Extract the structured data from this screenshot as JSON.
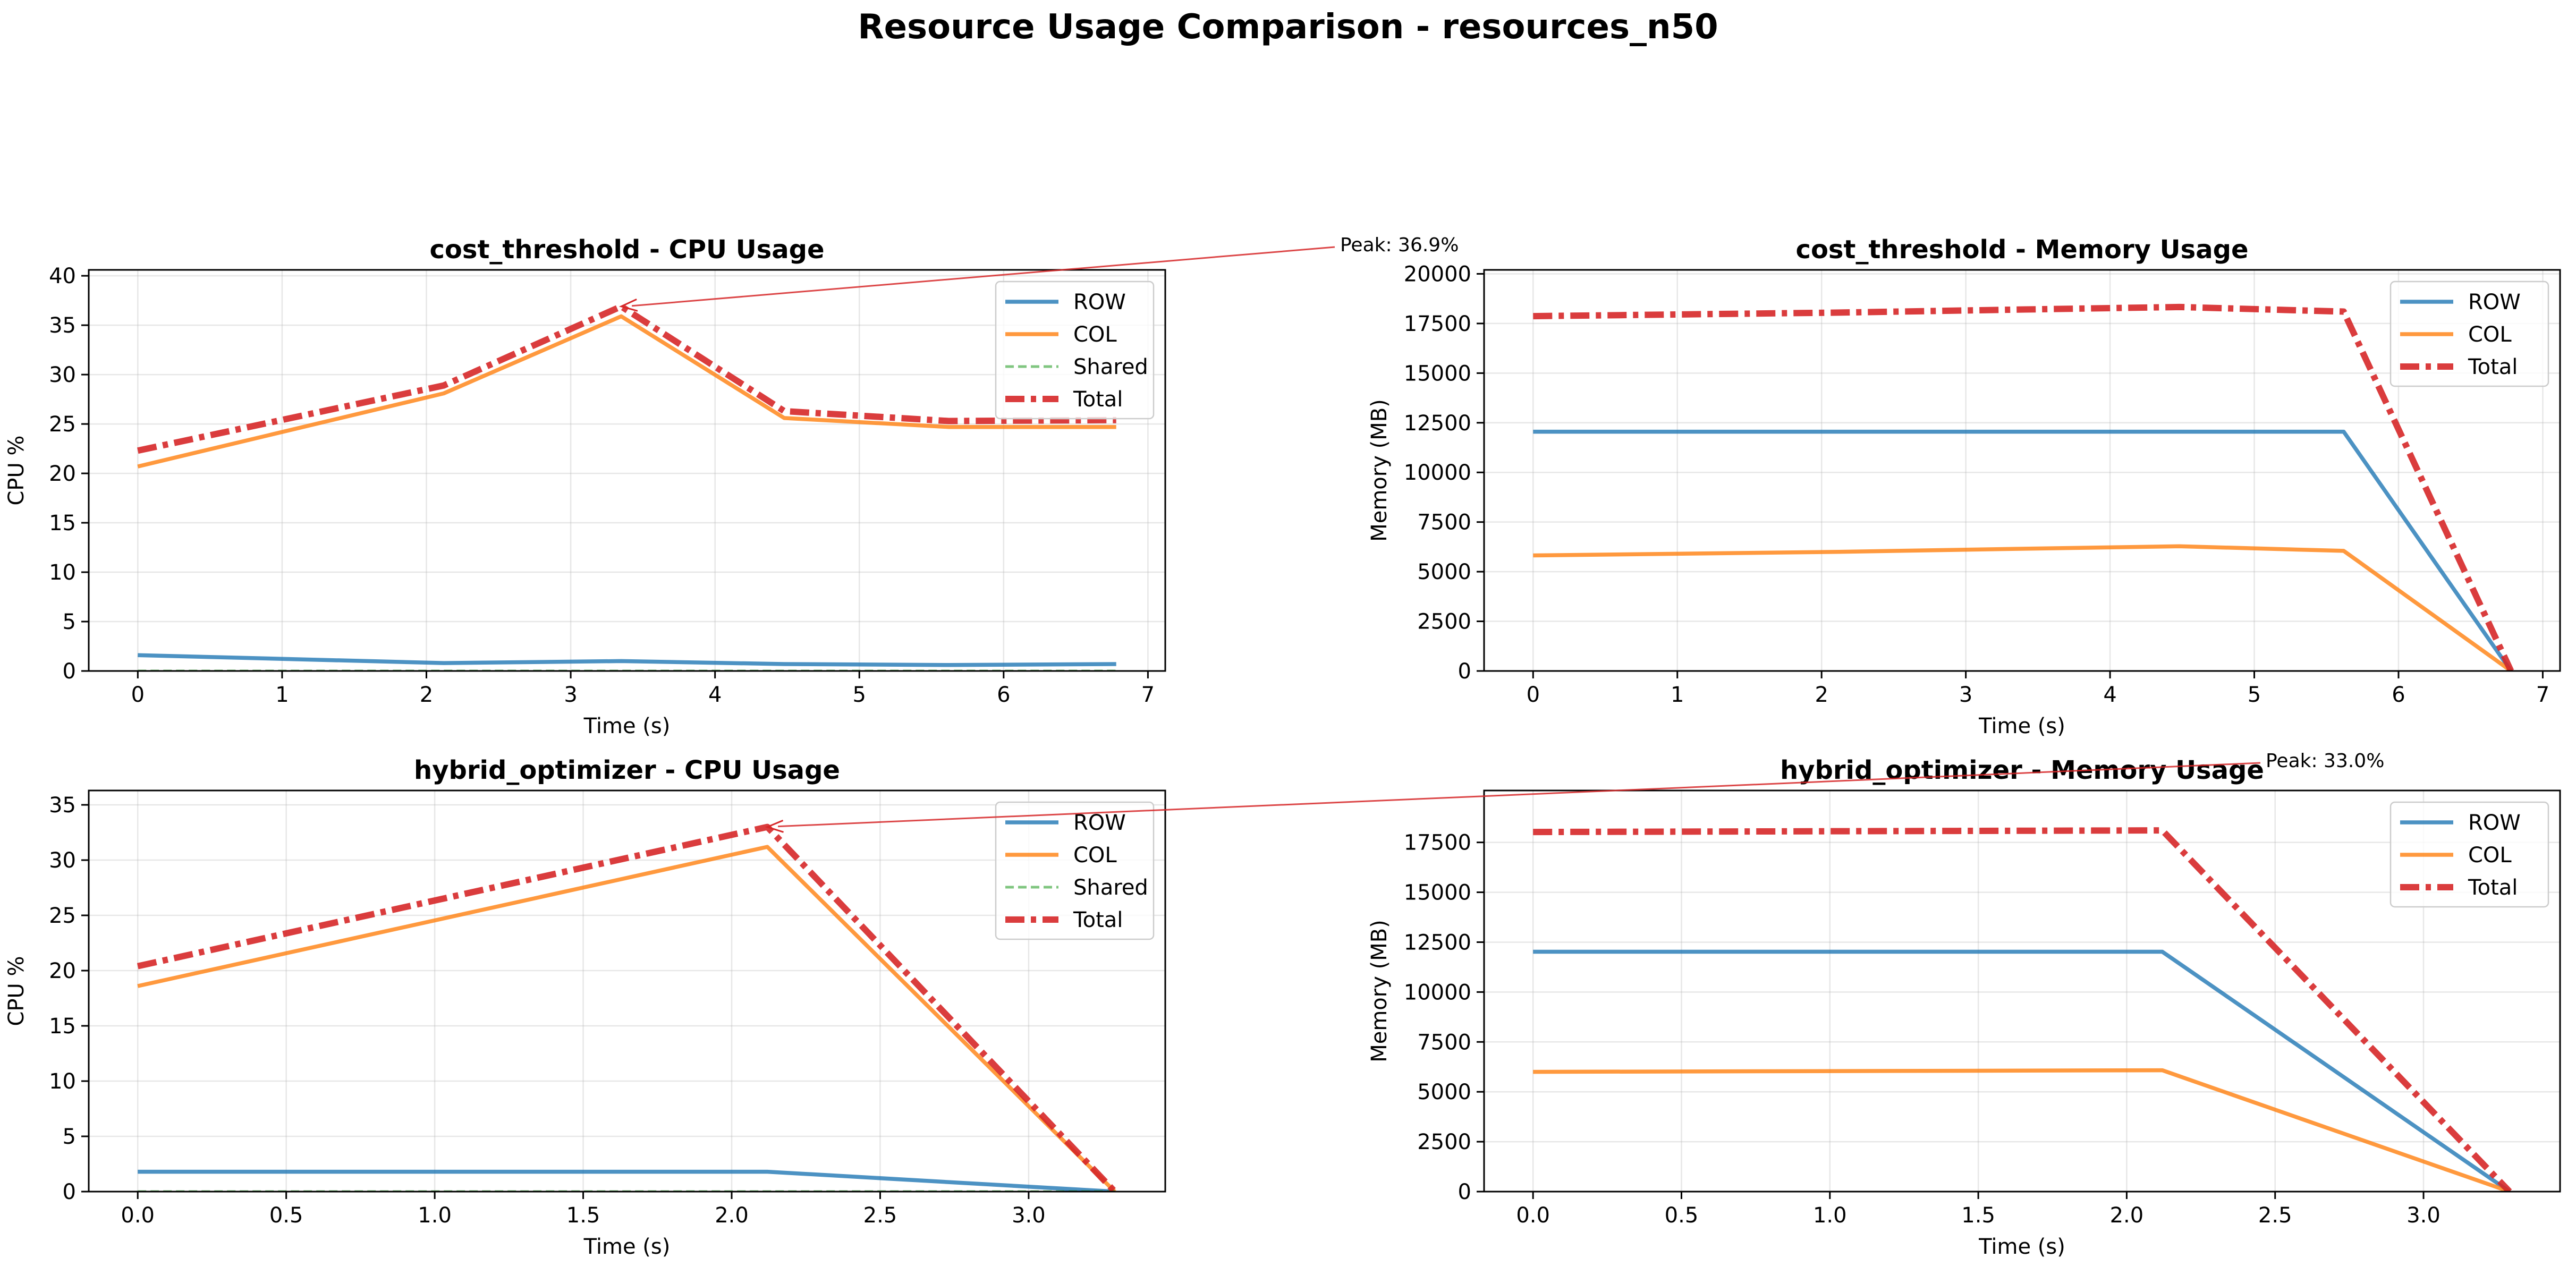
{
  "figure": {
    "title": "Resource Usage Comparison - resources_n50"
  },
  "colors": {
    "ROW": "#1f77b4",
    "COL": "#ff7f0e",
    "Shared": "#2ca02c",
    "Total": "#d62728"
  },
  "chart_data": [
    {
      "type": "line",
      "title": "cost_threshold - CPU Usage",
      "xlabel": "Time (s)",
      "ylabel": "CPU %",
      "xlim": [
        -0.34,
        7.12
      ],
      "ylim": [
        0,
        40.6
      ],
      "xticks": [
        0,
        1,
        2,
        3,
        4,
        5,
        6,
        7
      ],
      "yticks": [
        0,
        5,
        10,
        15,
        20,
        25,
        30,
        35,
        40
      ],
      "legend": "upper-right",
      "grid": true,
      "annotation": {
        "text": "Peak: 36.9%",
        "x": 3.35,
        "y": 36.9
      },
      "series": [
        {
          "name": "ROW",
          "x": [
            0,
            2.12,
            3.35,
            4.48,
            5.62,
            6.78
          ],
          "y": [
            1.6,
            0.8,
            1.0,
            0.7,
            0.6,
            0.7
          ]
        },
        {
          "name": "COL",
          "x": [
            0,
            2.12,
            3.35,
            4.48,
            5.62,
            6.78
          ],
          "y": [
            20.7,
            28.1,
            35.9,
            25.6,
            24.7,
            24.7
          ]
        },
        {
          "name": "Shared",
          "x": [
            0,
            2.12,
            3.35,
            4.48,
            5.62,
            6.78
          ],
          "y": [
            0,
            0,
            0,
            0,
            0,
            0
          ]
        },
        {
          "name": "Total",
          "x": [
            0,
            2.12,
            3.35,
            4.48,
            5.62,
            6.78
          ],
          "y": [
            22.3,
            28.9,
            36.9,
            26.3,
            25.3,
            25.4
          ]
        }
      ]
    },
    {
      "type": "line",
      "title": "cost_threshold - Memory Usage",
      "xlabel": "Time (s)",
      "ylabel": "Memory (MB)",
      "xlim": [
        -0.34,
        7.12
      ],
      "ylim": [
        0,
        20200
      ],
      "xticks": [
        0,
        1,
        2,
        3,
        4,
        5,
        6,
        7
      ],
      "yticks": [
        0,
        2500,
        5000,
        7500,
        10000,
        12500,
        15000,
        17500,
        20000
      ],
      "legend": "upper-right",
      "grid": true,
      "series": [
        {
          "name": "ROW",
          "x": [
            0,
            5.62,
            6.78
          ],
          "y": [
            12050,
            12050,
            0
          ]
        },
        {
          "name": "COL",
          "x": [
            0,
            2.12,
            3.35,
            4.48,
            5.62,
            6.78
          ],
          "y": [
            5820,
            6000,
            6150,
            6280,
            6050,
            0
          ]
        },
        {
          "name": "Total",
          "x": [
            0,
            2.12,
            3.35,
            4.48,
            5.62,
            6.78
          ],
          "y": [
            17870,
            18050,
            18200,
            18330,
            18100,
            0
          ]
        }
      ]
    },
    {
      "type": "line",
      "title": "hybrid_optimizer - CPU Usage",
      "xlabel": "Time (s)",
      "ylabel": "CPU %",
      "xlim": [
        -0.165,
        3.46
      ],
      "ylim": [
        0,
        36.3
      ],
      "xticks": [
        0,
        0.5,
        1,
        1.5,
        2,
        2.5,
        3
      ],
      "yticks": [
        0,
        5,
        10,
        15,
        20,
        25,
        30,
        35
      ],
      "legend": "upper-right",
      "grid": true,
      "annotation": {
        "text": "Peak: 33.0%",
        "x": 2.12,
        "y": 33.0
      },
      "series": [
        {
          "name": "ROW",
          "x": [
            0,
            2.12,
            3.29
          ],
          "y": [
            1.8,
            1.8,
            0
          ]
        },
        {
          "name": "COL",
          "x": [
            0,
            2.12,
            3.29
          ],
          "y": [
            18.6,
            31.2,
            0
          ]
        },
        {
          "name": "Shared",
          "x": [
            0,
            2.12,
            3.29
          ],
          "y": [
            0,
            0,
            0
          ]
        },
        {
          "name": "Total",
          "x": [
            0,
            2.12,
            3.29
          ],
          "y": [
            20.4,
            33.0,
            0
          ]
        }
      ]
    },
    {
      "type": "line",
      "title": "hybrid_optimizer - Memory Usage",
      "xlabel": "Time (s)",
      "ylabel": "Memory (MB)",
      "xlim": [
        -0.165,
        3.46
      ],
      "ylim": [
        0,
        20100
      ],
      "xticks": [
        0,
        0.5,
        1,
        1.5,
        2,
        2.5,
        3
      ],
      "yticks": [
        0,
        2500,
        5000,
        7500,
        10000,
        12500,
        15000,
        17500
      ],
      "legend": "upper-right",
      "grid": true,
      "series": [
        {
          "name": "ROW",
          "x": [
            0,
            2.12,
            3.29
          ],
          "y": [
            12020,
            12020,
            0
          ]
        },
        {
          "name": "COL",
          "x": [
            0,
            2.12,
            3.29
          ],
          "y": [
            6000,
            6080,
            0
          ]
        },
        {
          "name": "Total",
          "x": [
            0,
            2.12,
            3.29
          ],
          "y": [
            18020,
            18100,
            0
          ]
        }
      ]
    }
  ]
}
